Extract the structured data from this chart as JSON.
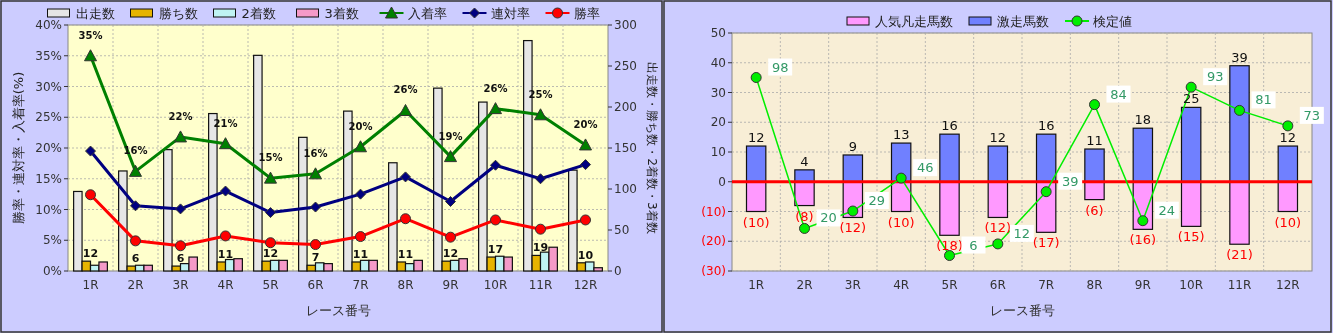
{
  "chart_data": [
    {
      "type": "bar",
      "categories": [
        "1R",
        "2R",
        "3R",
        "4R",
        "5R",
        "6R",
        "7R",
        "8R",
        "9R",
        "10R",
        "11R",
        "12R"
      ],
      "xlabel": "レース番号",
      "ylabel": "勝率・連対率・入着率(%)",
      "y2label": "出走数・勝ち数・2着数・3着数",
      "ylim": [
        0,
        40
      ],
      "yticks": [
        {
          "value": 0,
          "label": "0%"
        },
        {
          "value": 5,
          "label": "5%"
        },
        {
          "value": 10,
          "label": "10%"
        },
        {
          "value": 15,
          "label": "15%"
        },
        {
          "value": 20,
          "label": "20%"
        },
        {
          "value": 25,
          "label": "25%"
        },
        {
          "value": 30,
          "label": "30%"
        },
        {
          "value": 35,
          "label": "35%"
        },
        {
          "value": 40,
          "label": "40%"
        }
      ],
      "y2lim": [
        0,
        300
      ],
      "y2ticks": [
        0,
        50,
        100,
        150,
        200,
        250,
        300
      ],
      "grid": true,
      "legend": "top",
      "series": [
        {
          "name": "出走数",
          "axis": "y2",
          "color": "#e6e6e6",
          "values": [
            97,
            122,
            148,
            192,
            263,
            163,
            195,
            132,
            223,
            206,
            281,
            123
          ]
        },
        {
          "name": "勝ち数",
          "axis": "y2",
          "color": "#e6b400",
          "values": [
            12,
            6,
            6,
            11,
            12,
            7,
            11,
            11,
            12,
            17,
            19,
            10
          ],
          "value_labels": [
            "12",
            "6",
            "6",
            "11",
            "12",
            "7",
            "11",
            "11",
            "12",
            "17",
            "19",
            "10"
          ]
        },
        {
          "name": "2着数",
          "axis": "y2",
          "color": "#bff3f3",
          "values": [
            7,
            7,
            9,
            14,
            13,
            10,
            13,
            9,
            13,
            18,
            23,
            11
          ]
        },
        {
          "name": "3着数",
          "axis": "y2",
          "color": "#f59ac8",
          "values": [
            11,
            7,
            17,
            15,
            13,
            9,
            13,
            13,
            15,
            17,
            29,
            4
          ]
        },
        {
          "name": "入着率",
          "type": "line",
          "color": "#008000",
          "marker": "triangle",
          "values": [
            35.0,
            16.2,
            21.8,
            20.7,
            15.1,
            15.8,
            20.2,
            26.1,
            18.6,
            26.4,
            25.4,
            20.5
          ],
          "value_labels": [
            "35%",
            "16%",
            "22%",
            "21%",
            "15%",
            "16%",
            "20%",
            "26%",
            "19%",
            "26%",
            "25%",
            "20%"
          ]
        },
        {
          "name": "連対率",
          "type": "line",
          "color": "#000080",
          "marker": "diamond",
          "values": [
            19.5,
            10.6,
            10.1,
            13.0,
            9.5,
            10.4,
            12.5,
            15.3,
            11.3,
            17.2,
            15.0,
            17.3
          ]
        },
        {
          "name": "勝率",
          "type": "line",
          "color": "#ff0000",
          "marker": "circle",
          "values": [
            12.4,
            4.9,
            4.1,
            5.7,
            4.6,
            4.3,
            5.6,
            8.5,
            5.5,
            8.3,
            6.8,
            8.3
          ]
        }
      ]
    },
    {
      "type": "bar",
      "stacked": true,
      "categories": [
        "1R",
        "2R",
        "3R",
        "4R",
        "5R",
        "6R",
        "7R",
        "8R",
        "9R",
        "10R",
        "11R",
        "12R"
      ],
      "xlabel": "レース番号",
      "ylim": [
        -30,
        50
      ],
      "yticks": [
        {
          "value": -30,
          "label": "(30)"
        },
        {
          "value": -20,
          "label": "(20)"
        },
        {
          "value": -10,
          "label": "(10)"
        },
        0,
        10,
        20,
        30,
        40,
        50
      ],
      "y2lim": [
        -2,
        121
      ],
      "grid": true,
      "legend": "top",
      "ref_lines": [
        {
          "axis": "y",
          "value": 0,
          "color": "#ff0000"
        }
      ],
      "series": [
        {
          "name": "人気凡走馬数",
          "color": "#ff99ff",
          "values": [
            -10,
            -8,
            -12,
            -10,
            -18,
            -12,
            -17,
            -6,
            -16,
            -15,
            -21,
            -10
          ],
          "value_labels": [
            "(10)",
            "(8)",
            "(12)",
            "(10)",
            "(18)",
            "(12)",
            "(17)",
            "(6)",
            "(16)",
            "(15)",
            "(21)",
            "(10)"
          ]
        },
        {
          "name": "激走馬数",
          "color": "#7080ff",
          "values": [
            12,
            4,
            9,
            13,
            16,
            12,
            16,
            11,
            18,
            25,
            39,
            12
          ],
          "value_labels": [
            "12",
            "4",
            "9",
            "13",
            "16",
            "12",
            "16",
            "11",
            "18",
            "25",
            "39",
            "12"
          ]
        },
        {
          "name": "検定値",
          "type": "line",
          "axis": "y2",
          "color": "#00ee00",
          "marker": "circle",
          "values": [
            98,
            20,
            29,
            46,
            6,
            12,
            39,
            84,
            24,
            93,
            81,
            73
          ],
          "value_labels": [
            "98",
            "20",
            "29",
            "46",
            "6",
            "12",
            "39",
            "84",
            "24",
            "93",
            "81",
            "73"
          ]
        }
      ]
    }
  ]
}
